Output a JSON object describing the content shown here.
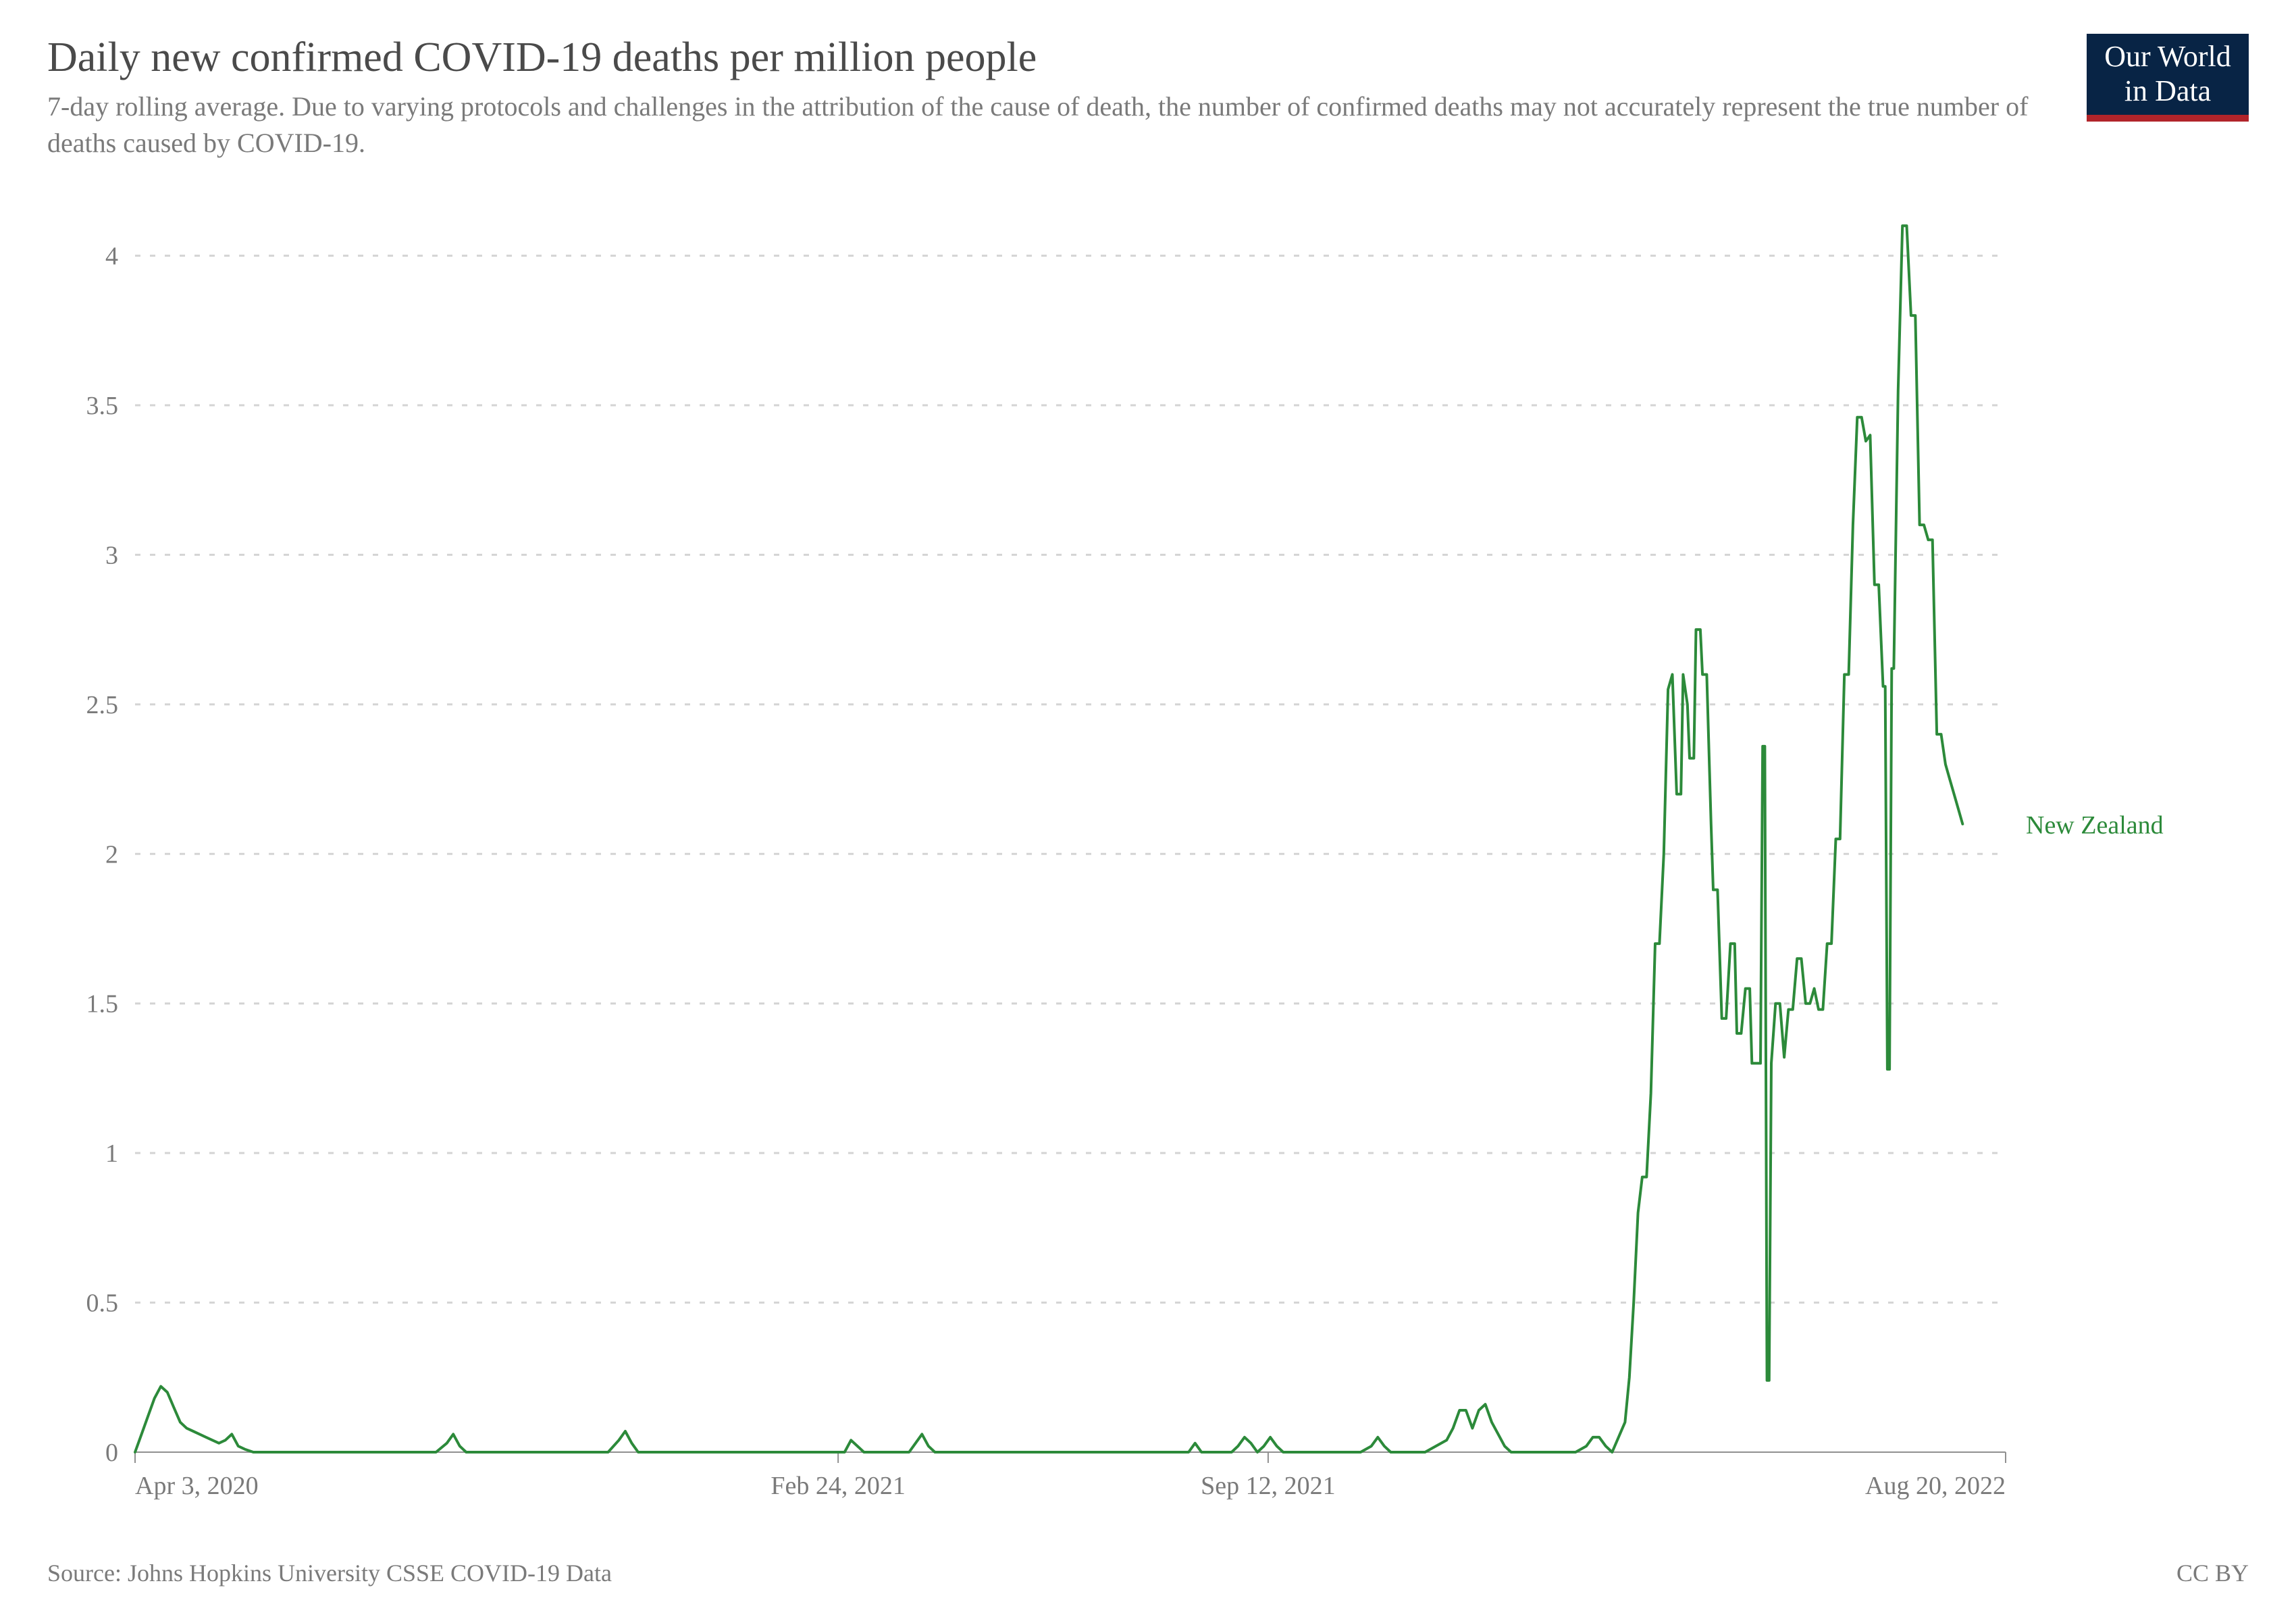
{
  "header": {
    "title": "Daily new confirmed COVID-19 deaths per million people",
    "subtitle": "7-day rolling average. Due to varying protocols and challenges in the attribution of the cause of death, the number of confirmed deaths may not accurately represent the true number of deaths caused by COVID-19.",
    "logo_line1": "Our World",
    "logo_line2": "in Data"
  },
  "footer": {
    "source": "Source: Johns Hopkins University CSSE COVID-19 Data",
    "license": "CC BY"
  },
  "chart": {
    "type": "line",
    "series_label": "New Zealand",
    "series_color": "#2c8a3a",
    "line_width": 4,
    "background_color": "#ffffff",
    "grid_color": "#d4d4d4",
    "axis_text_color": "#7a7a7a",
    "tick_font_size": 38,
    "label_font_size": 38,
    "x": {
      "min": 0,
      "max": 870,
      "ticks": [
        {
          "pos": 0,
          "label": "Apr 3, 2020"
        },
        {
          "pos": 327,
          "label": "Feb 24, 2021"
        },
        {
          "pos": 527,
          "label": "Sep 12, 2021"
        },
        {
          "pos": 870,
          "label": "Aug 20, 2022"
        }
      ]
    },
    "y": {
      "min": 0,
      "max": 4.2,
      "ticks": [
        0,
        0.5,
        1,
        1.5,
        2,
        2.5,
        3,
        3.5,
        4
      ]
    },
    "points": [
      [
        0,
        0.0
      ],
      [
        3,
        0.06
      ],
      [
        6,
        0.12
      ],
      [
        9,
        0.18
      ],
      [
        12,
        0.22
      ],
      [
        15,
        0.2
      ],
      [
        18,
        0.15
      ],
      [
        21,
        0.1
      ],
      [
        24,
        0.08
      ],
      [
        27,
        0.07
      ],
      [
        30,
        0.06
      ],
      [
        33,
        0.05
      ],
      [
        36,
        0.04
      ],
      [
        39,
        0.03
      ],
      [
        42,
        0.04
      ],
      [
        45,
        0.06
      ],
      [
        48,
        0.02
      ],
      [
        51,
        0.01
      ],
      [
        55,
        0.0
      ],
      [
        60,
        0.0
      ],
      [
        80,
        0.0
      ],
      [
        100,
        0.0
      ],
      [
        120,
        0.0
      ],
      [
        140,
        0.0
      ],
      [
        145,
        0.03
      ],
      [
        148,
        0.06
      ],
      [
        151,
        0.02
      ],
      [
        154,
        0.0
      ],
      [
        160,
        0.0
      ],
      [
        180,
        0.0
      ],
      [
        200,
        0.0
      ],
      [
        220,
        0.0
      ],
      [
        225,
        0.04
      ],
      [
        228,
        0.07
      ],
      [
        231,
        0.03
      ],
      [
        234,
        0.0
      ],
      [
        250,
        0.0
      ],
      [
        280,
        0.0
      ],
      [
        310,
        0.0
      ],
      [
        330,
        0.0
      ],
      [
        333,
        0.04
      ],
      [
        336,
        0.02
      ],
      [
        339,
        0.0
      ],
      [
        360,
        0.0
      ],
      [
        363,
        0.03
      ],
      [
        366,
        0.06
      ],
      [
        369,
        0.02
      ],
      [
        372,
        0.0
      ],
      [
        400,
        0.0
      ],
      [
        430,
        0.0
      ],
      [
        460,
        0.0
      ],
      [
        490,
        0.0
      ],
      [
        493,
        0.03
      ],
      [
        496,
        0.0
      ],
      [
        510,
        0.0
      ],
      [
        513,
        0.02
      ],
      [
        516,
        0.05
      ],
      [
        519,
        0.03
      ],
      [
        522,
        0.0
      ],
      [
        525,
        0.02
      ],
      [
        528,
        0.05
      ],
      [
        531,
        0.02
      ],
      [
        534,
        0.0
      ],
      [
        550,
        0.0
      ],
      [
        570,
        0.0
      ],
      [
        575,
        0.02
      ],
      [
        578,
        0.05
      ],
      [
        581,
        0.02
      ],
      [
        584,
        0.0
      ],
      [
        600,
        0.0
      ],
      [
        610,
        0.04
      ],
      [
        613,
        0.08
      ],
      [
        616,
        0.14
      ],
      [
        619,
        0.14
      ],
      [
        622,
        0.08
      ],
      [
        625,
        0.14
      ],
      [
        628,
        0.16
      ],
      [
        631,
        0.1
      ],
      [
        634,
        0.06
      ],
      [
        637,
        0.02
      ],
      [
        640,
        0.0
      ],
      [
        655,
        0.0
      ],
      [
        665,
        0.0
      ],
      [
        670,
        0.0
      ],
      [
        675,
        0.02
      ],
      [
        678,
        0.05
      ],
      [
        681,
        0.05
      ],
      [
        684,
        0.02
      ],
      [
        687,
        0.0
      ],
      [
        693,
        0.1
      ],
      [
        695,
        0.25
      ],
      [
        697,
        0.5
      ],
      [
        699,
        0.8
      ],
      [
        701,
        0.92
      ],
      [
        703,
        0.92
      ],
      [
        705,
        1.2
      ],
      [
        707,
        1.7
      ],
      [
        709,
        1.7
      ],
      [
        711,
        2.0
      ],
      [
        713,
        2.55
      ],
      [
        715,
        2.6
      ],
      [
        717,
        2.2
      ],
      [
        719,
        2.2
      ],
      [
        720,
        2.6
      ],
      [
        722,
        2.5
      ],
      [
        723,
        2.32
      ],
      [
        725,
        2.32
      ],
      [
        726,
        2.75
      ],
      [
        728,
        2.75
      ],
      [
        729,
        2.6
      ],
      [
        731,
        2.6
      ],
      [
        733,
        2.1
      ],
      [
        734,
        1.88
      ],
      [
        736,
        1.88
      ],
      [
        738,
        1.45
      ],
      [
        740,
        1.45
      ],
      [
        742,
        1.7
      ],
      [
        744,
        1.7
      ],
      [
        745,
        1.4
      ],
      [
        747,
        1.4
      ],
      [
        749,
        1.55
      ],
      [
        751,
        1.55
      ],
      [
        752,
        1.3
      ],
      [
        754,
        1.3
      ],
      [
        756,
        1.3
      ],
      [
        757,
        2.36
      ],
      [
        758,
        2.36
      ],
      [
        759,
        0.24
      ],
      [
        760,
        0.24
      ],
      [
        761,
        1.3
      ],
      [
        763,
        1.5
      ],
      [
        765,
        1.5
      ],
      [
        767,
        1.32
      ],
      [
        769,
        1.48
      ],
      [
        771,
        1.48
      ],
      [
        773,
        1.65
      ],
      [
        775,
        1.65
      ],
      [
        777,
        1.5
      ],
      [
        779,
        1.5
      ],
      [
        781,
        1.55
      ],
      [
        783,
        1.48
      ],
      [
        785,
        1.48
      ],
      [
        787,
        1.7
      ],
      [
        789,
        1.7
      ],
      [
        791,
        2.05
      ],
      [
        793,
        2.05
      ],
      [
        795,
        2.6
      ],
      [
        797,
        2.6
      ],
      [
        799,
        3.1
      ],
      [
        801,
        3.46
      ],
      [
        803,
        3.46
      ],
      [
        805,
        3.38
      ],
      [
        807,
        3.4
      ],
      [
        809,
        2.9
      ],
      [
        811,
        2.9
      ],
      [
        813,
        2.56
      ],
      [
        814,
        2.56
      ],
      [
        815,
        1.28
      ],
      [
        816,
        1.28
      ],
      [
        817,
        2.62
      ],
      [
        818,
        2.62
      ],
      [
        820,
        3.55
      ],
      [
        822,
        4.1
      ],
      [
        824,
        4.1
      ],
      [
        826,
        3.8
      ],
      [
        828,
        3.8
      ],
      [
        830,
        3.1
      ],
      [
        832,
        3.1
      ],
      [
        834,
        3.05
      ],
      [
        836,
        3.05
      ],
      [
        838,
        2.4
      ],
      [
        840,
        2.4
      ],
      [
        842,
        2.3
      ],
      [
        844,
        2.25
      ],
      [
        846,
        2.2
      ],
      [
        848,
        2.15
      ],
      [
        850,
        2.1
      ]
    ],
    "label_anchor_y": 2.1
  }
}
